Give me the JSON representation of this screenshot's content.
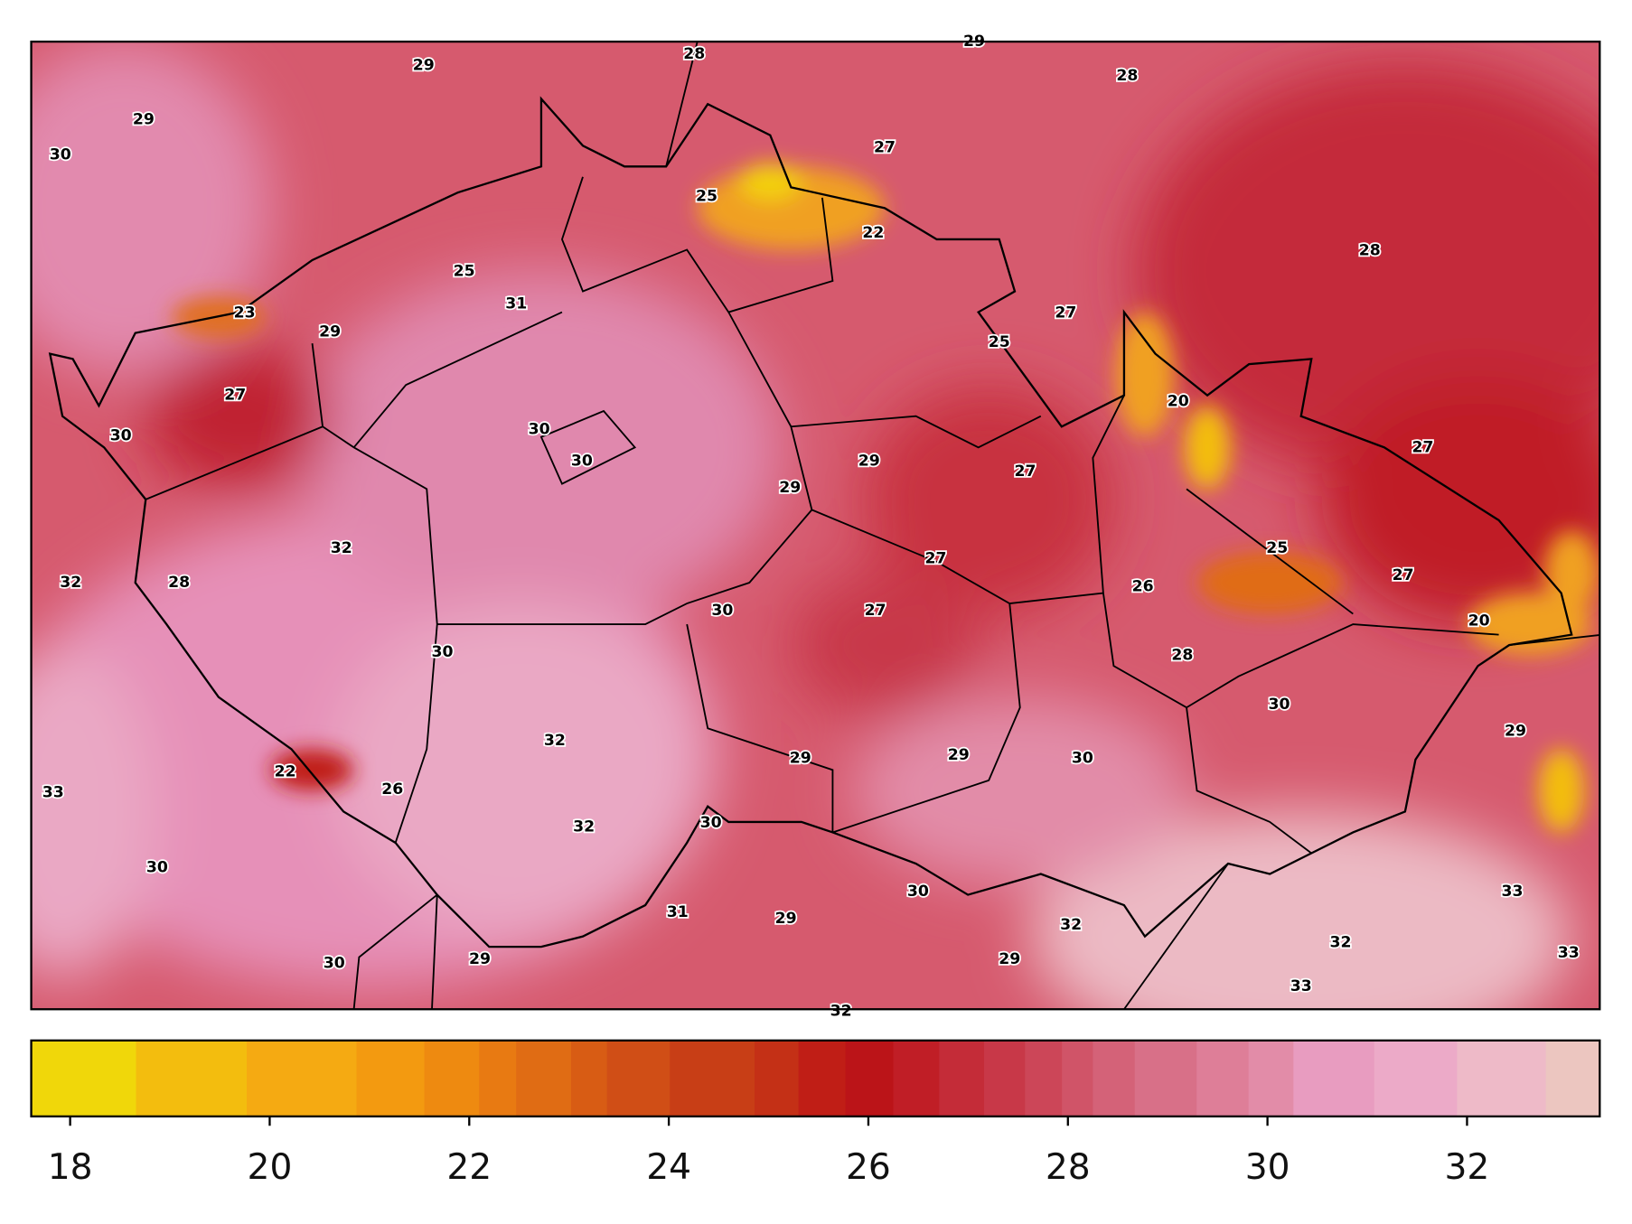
{
  "map": {
    "labels": [
      29,
      28,
      29,
      28,
      29,
      30,
      27,
      25,
      22,
      28,
      25,
      31,
      23,
      29,
      27,
      25,
      27,
      20,
      30,
      30,
      30,
      29,
      29,
      27,
      27,
      32,
      25,
      27,
      32,
      28,
      26,
      27,
      30,
      27,
      20,
      30,
      28,
      30,
      32,
      29,
      29,
      29,
      30,
      22,
      26,
      33,
      30,
      32,
      30,
      30,
      33,
      31,
      29,
      32,
      32,
      30,
      29,
      29,
      33,
      33,
      32
    ]
  },
  "colorbar": {
    "lim": [
      17.61,
      33.33
    ],
    "ticks": [
      18,
      20,
      22,
      24,
      26,
      28,
      30,
      32
    ],
    "levels": [
      17.61,
      18.66,
      19.77,
      20.87,
      21.55,
      22.1,
      22.47,
      23.02,
      23.38,
      24.01,
      24.86,
      25.3,
      25.77,
      26.25,
      26.71,
      27.16,
      27.57,
      27.94,
      28.25,
      28.67,
      29.29,
      29.81,
      30.26,
      31.07,
      31.9,
      32.79,
      33.33
    ],
    "colors": [
      "#f0d70a",
      "#f3bd0e",
      "#f5aa12",
      "#f39a10",
      "#ee8a10",
      "#e87a12",
      "#e06c14",
      "#d85c14",
      "#d04e16",
      "#c83e16",
      "#c43016",
      "#c01e16",
      "#bb1418",
      "#c01e26",
      "#c42c38",
      "#c83848",
      "#cc4658",
      "#d05468",
      "#d46278",
      "#d87088",
      "#de7e98",
      "#e28ca8",
      "#e89cc0",
      "#ecaac8",
      "#eebac8",
      "#ecc6c0"
    ]
  }
}
